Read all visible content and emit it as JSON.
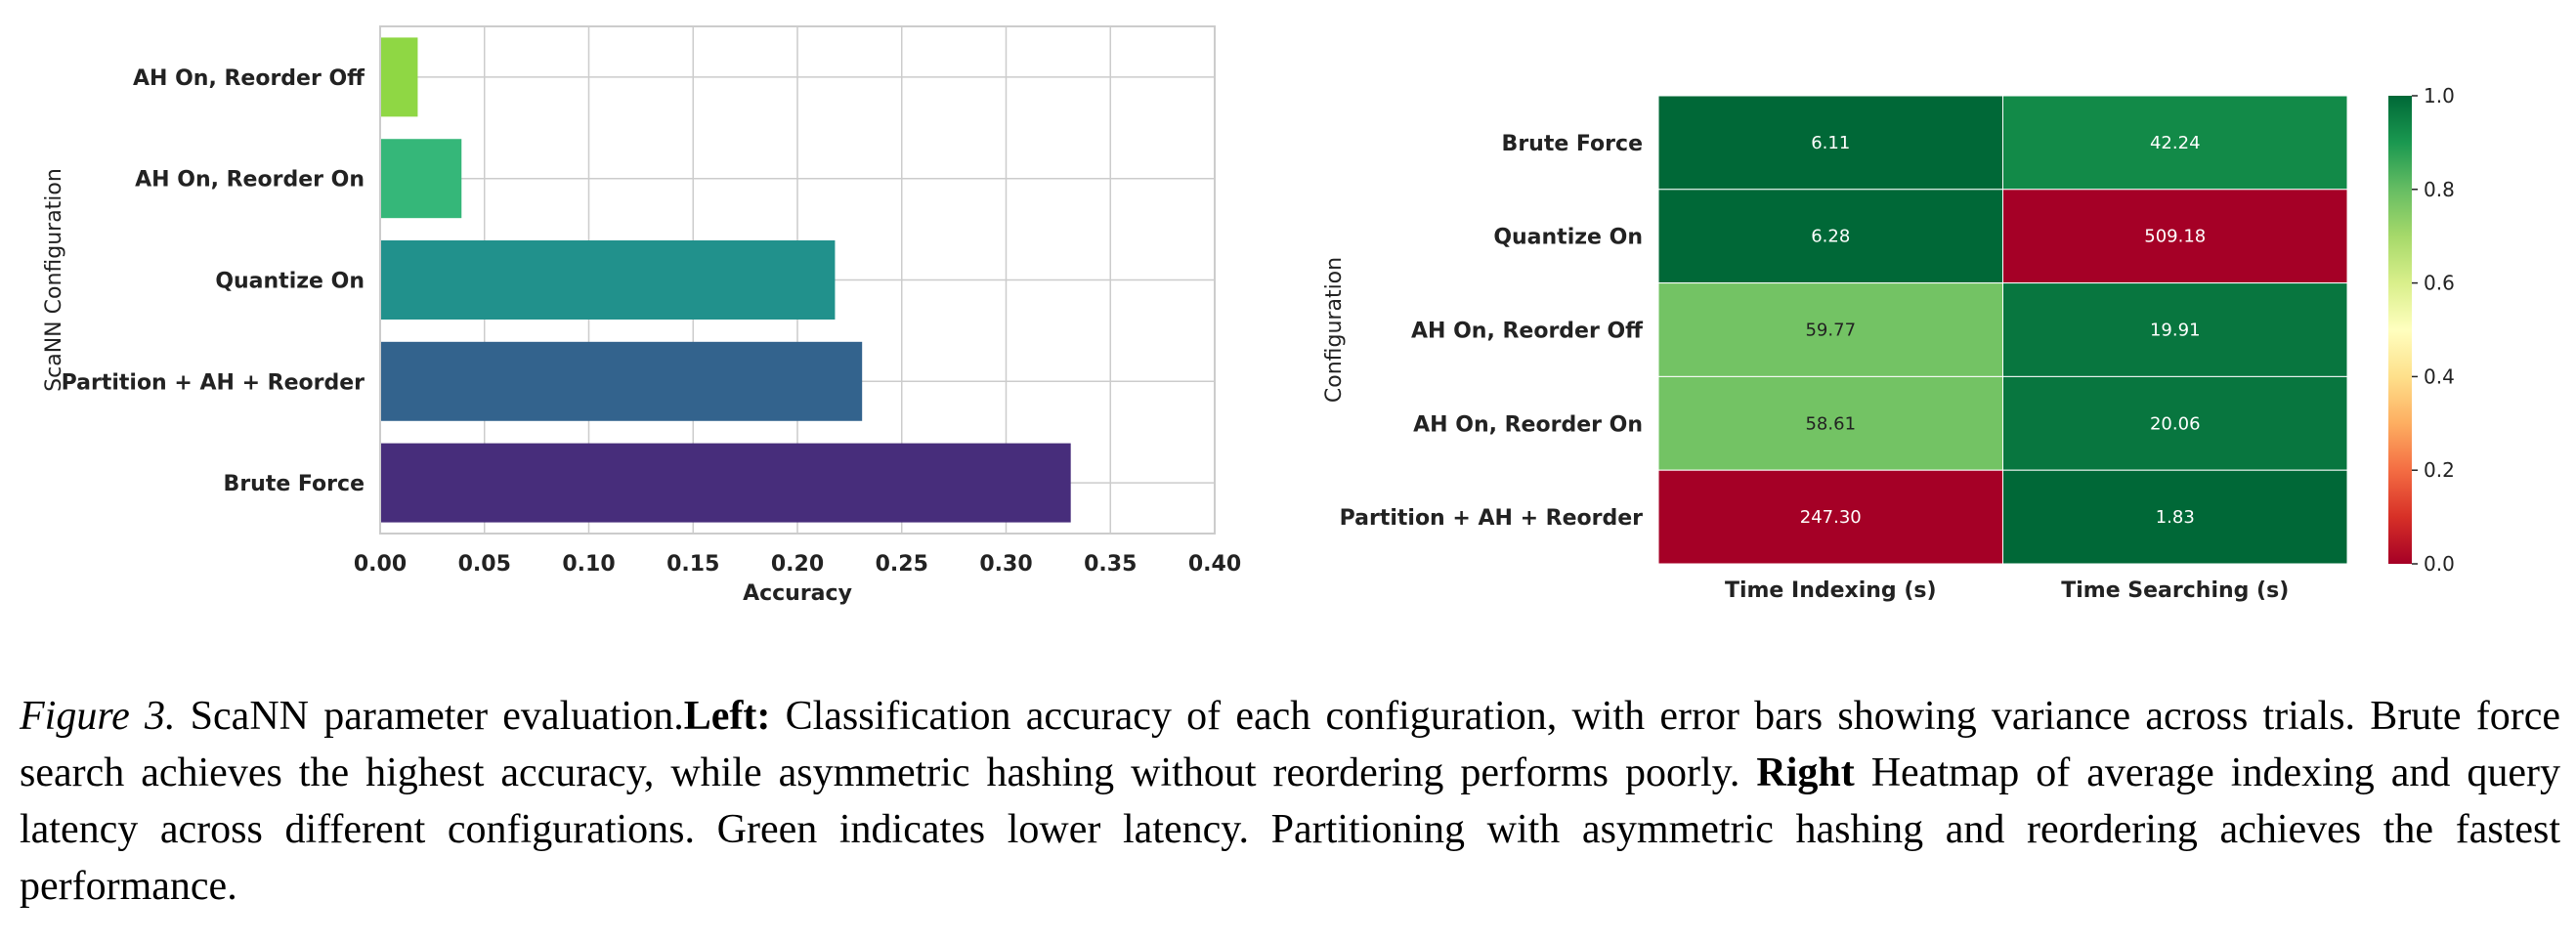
{
  "chart_data": [
    {
      "type": "bar",
      "orientation": "horizontal",
      "categories": [
        "Brute Force",
        "Partition + AH + Reorder",
        "Quantize On",
        "AH On, Reorder On",
        "AH On, Reorder Off"
      ],
      "values": [
        0.331,
        0.231,
        0.218,
        0.039,
        0.018
      ],
      "colors": [
        "#472d7b",
        "#33638d",
        "#21918c",
        "#35b779",
        "#8fd744"
      ],
      "xlabel": "Accuracy",
      "ylabel": "ScaNN Configuration",
      "xlim": [
        0,
        0.4
      ],
      "xticks": [
        "0.00",
        "0.05",
        "0.10",
        "0.15",
        "0.20",
        "0.25",
        "0.30",
        "0.35",
        "0.40"
      ],
      "grid": true
    },
    {
      "type": "heatmap",
      "rows": [
        "Brute Force",
        "Quantize On",
        "AH On, Reorder Off",
        "AH On, Reorder On",
        "Partition + AH + Reorder"
      ],
      "columns": [
        "Time Indexing (s)",
        "Time Searching (s)"
      ],
      "values": [
        [
          "6.11",
          "42.24"
        ],
        [
          "6.28",
          "509.18"
        ],
        [
          "59.77",
          "19.91"
        ],
        [
          "58.61",
          "20.06"
        ],
        [
          "247.30",
          "1.83"
        ]
      ],
      "normalized": [
        [
          1.0,
          0.93
        ],
        [
          1.0,
          0.0
        ],
        [
          0.78,
          0.97
        ],
        [
          0.78,
          0.97
        ],
        [
          0.0,
          1.0
        ]
      ],
      "ylabel": "Configuration",
      "colormap": "RdYlGn",
      "colorbar_range": [
        0.0,
        1.0
      ],
      "colorbar_ticks": [
        "0.0",
        "0.2",
        "0.4",
        "0.6",
        "0.8",
        "1.0"
      ]
    }
  ],
  "caption": {
    "fig_label": "Figure 3.",
    "intro": " ScaNN parameter evaluation.",
    "left_label": "Left:",
    "left_text": " Classification accuracy of each configuration, with error bars showing variance across trials. Brute force search achieves the highest accuracy, while asymmetric hashing without reordering performs poorly. ",
    "right_label": "Right",
    "right_text": " Heatmap of average indexing and query latency across different configurations. Green indicates lower latency. Partitioning with asymmetric hashing and reordering achieves the fastest performance."
  }
}
